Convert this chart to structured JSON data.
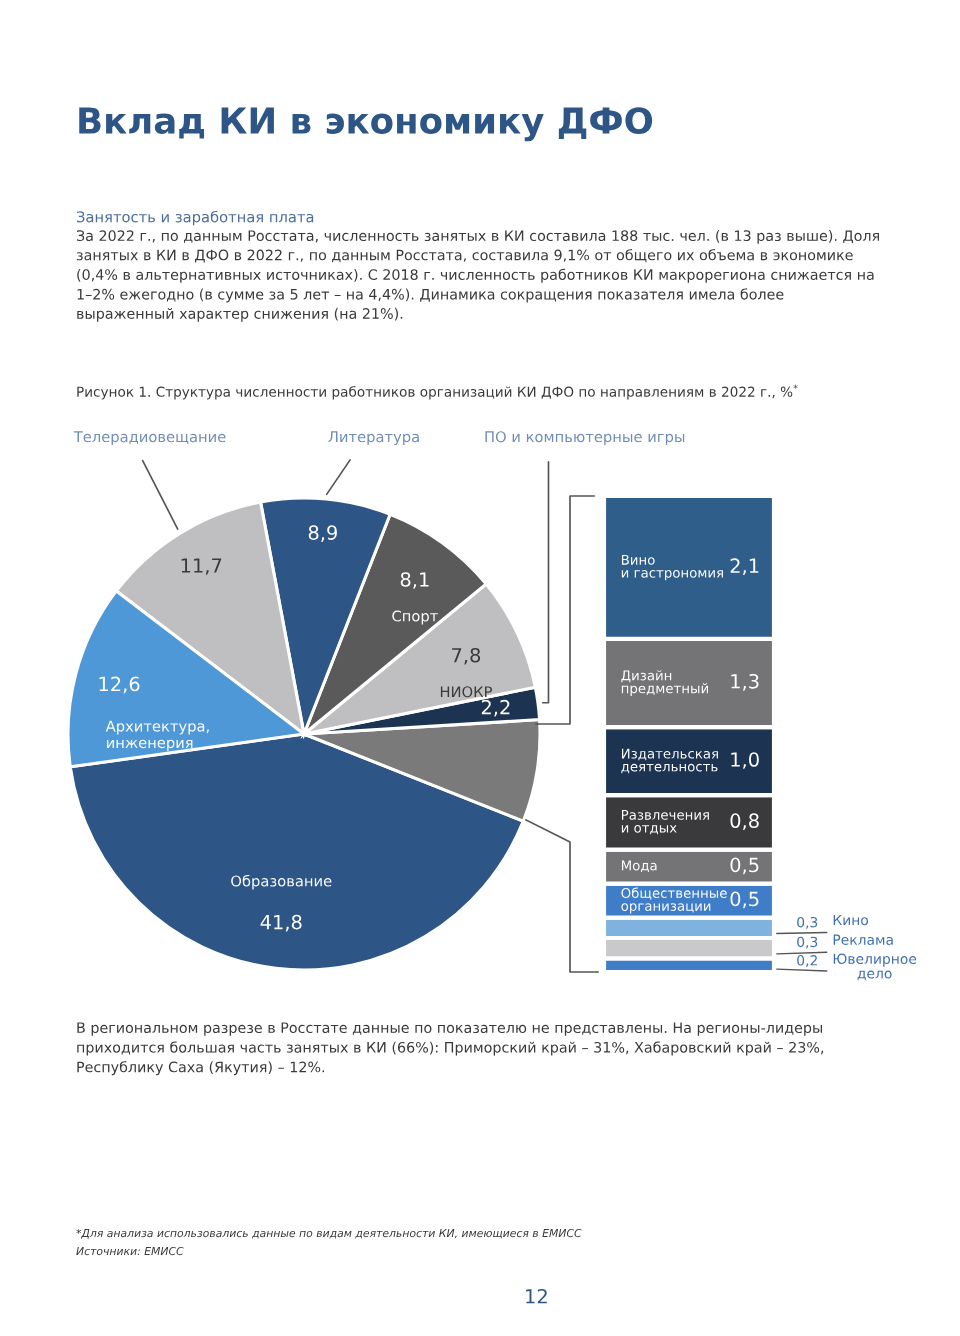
{
  "chart_data": [
    {
      "type": "pie",
      "title": "Рисунок 1. Структура численности работников организаций КИ ДФО по направлениям в 2022 г., %$^{*}$",
      "categories": [
        "Образование",
        null,
        "ПО и компьютерные игры",
        "НИОКР",
        "Спорт",
        "Литература",
        "Телерадиовещание",
        "Архитектура,\nинженерия"
      ],
      "values": [
        41.8,
        7.0,
        2.2,
        7.8,
        8.1,
        8.9,
        11.7,
        12.6
      ],
      "value_labels": [
        "41,8",
        null,
        "2,2",
        "7,8",
        "8,1",
        "8,9",
        "11,7",
        "12,6"
      ],
      "colors": [
        "#2d5586",
        "#7a7a7a",
        "#1d3352",
        "#bfbfc1",
        "#5a5a5a",
        "#2d5586",
        "#bfbfc1",
        "#4f98d7"
      ],
      "annotations": [
        "Вклад КИ в экономику ДФО",
        "Занятость и заработная плата",
        "За 2022 г., по данным Росстата, численность занятых в КИ составила 188 тыс. чел. (в 13 раз выше). Доля занятых в КИ в ДФО в 2022 г., по данным Росстата, составила 9,1% от общего их объема в экономике (0,4% в альтернативных источниках). С 2018 г. численность работников КИ макрорегиона снижается на 1–2% ежегодно (в сумме за 5 лет – на 4,4%). Динамика сокращения показателя имела более выраженный характер снижения (на 21%).",
        "В региональном разрезе в Росстате данные по показателю не представлены. На регионы-лидеры приходится большая часть занятых в КИ (66%): Приморский край – 31%, Хабаровский край – 23%, Республику Саха (Якутия) – 12%.",
        "*Для анализа использовались данные по видам деятельности КИ, имеющиеся в ЕМИСС",
        "Источники: ЕМИСС",
        "12"
      ]
    },
    {
      "type": "bar",
      "stacked": true,
      "tick_labels": false,
      "categories": [
        null
      ],
      "series": [
        {
          "name": "Ювелирное\nдело",
          "color": "#3f7dc8",
          "values": [
            0.2
          ],
          "value_labels": [
            "0,2"
          ]
        },
        {
          "name": "Реклама",
          "color": "#c9c9cb",
          "values": [
            0.3
          ],
          "value_labels": [
            "0,3"
          ]
        },
        {
          "name": "Кино",
          "color": "#7fb2df",
          "values": [
            0.3
          ],
          "value_labels": [
            "0,3"
          ]
        },
        {
          "name": "Общественные\nорганизации",
          "color": "#3f7dc8",
          "values": [
            0.5
          ],
          "value_labels": [
            "0,5"
          ]
        },
        {
          "name": "Мода",
          "color": "#747376",
          "values": [
            0.5
          ],
          "value_labels": [
            "0,5"
          ]
        },
        {
          "name": "Развлечения\nи отдых",
          "color": "#3a3a3c",
          "values": [
            0.8
          ],
          "value_labels": [
            "0,8"
          ]
        },
        {
          "name": "Издательская\nдеятельность",
          "color": "#1d3352",
          "values": [
            1.0
          ],
          "value_labels": [
            "1,0"
          ]
        },
        {
          "name": "Дизайн\nпредметный",
          "color": "#747376",
          "values": [
            1.3
          ],
          "value_labels": [
            "1,3"
          ]
        },
        {
          "name": "Вино\nи гастрономия",
          "color": "#2f5e8b",
          "values": [
            2.1
          ],
          "value_labels": [
            "2,1"
          ]
        }
      ]
    }
  ]
}
